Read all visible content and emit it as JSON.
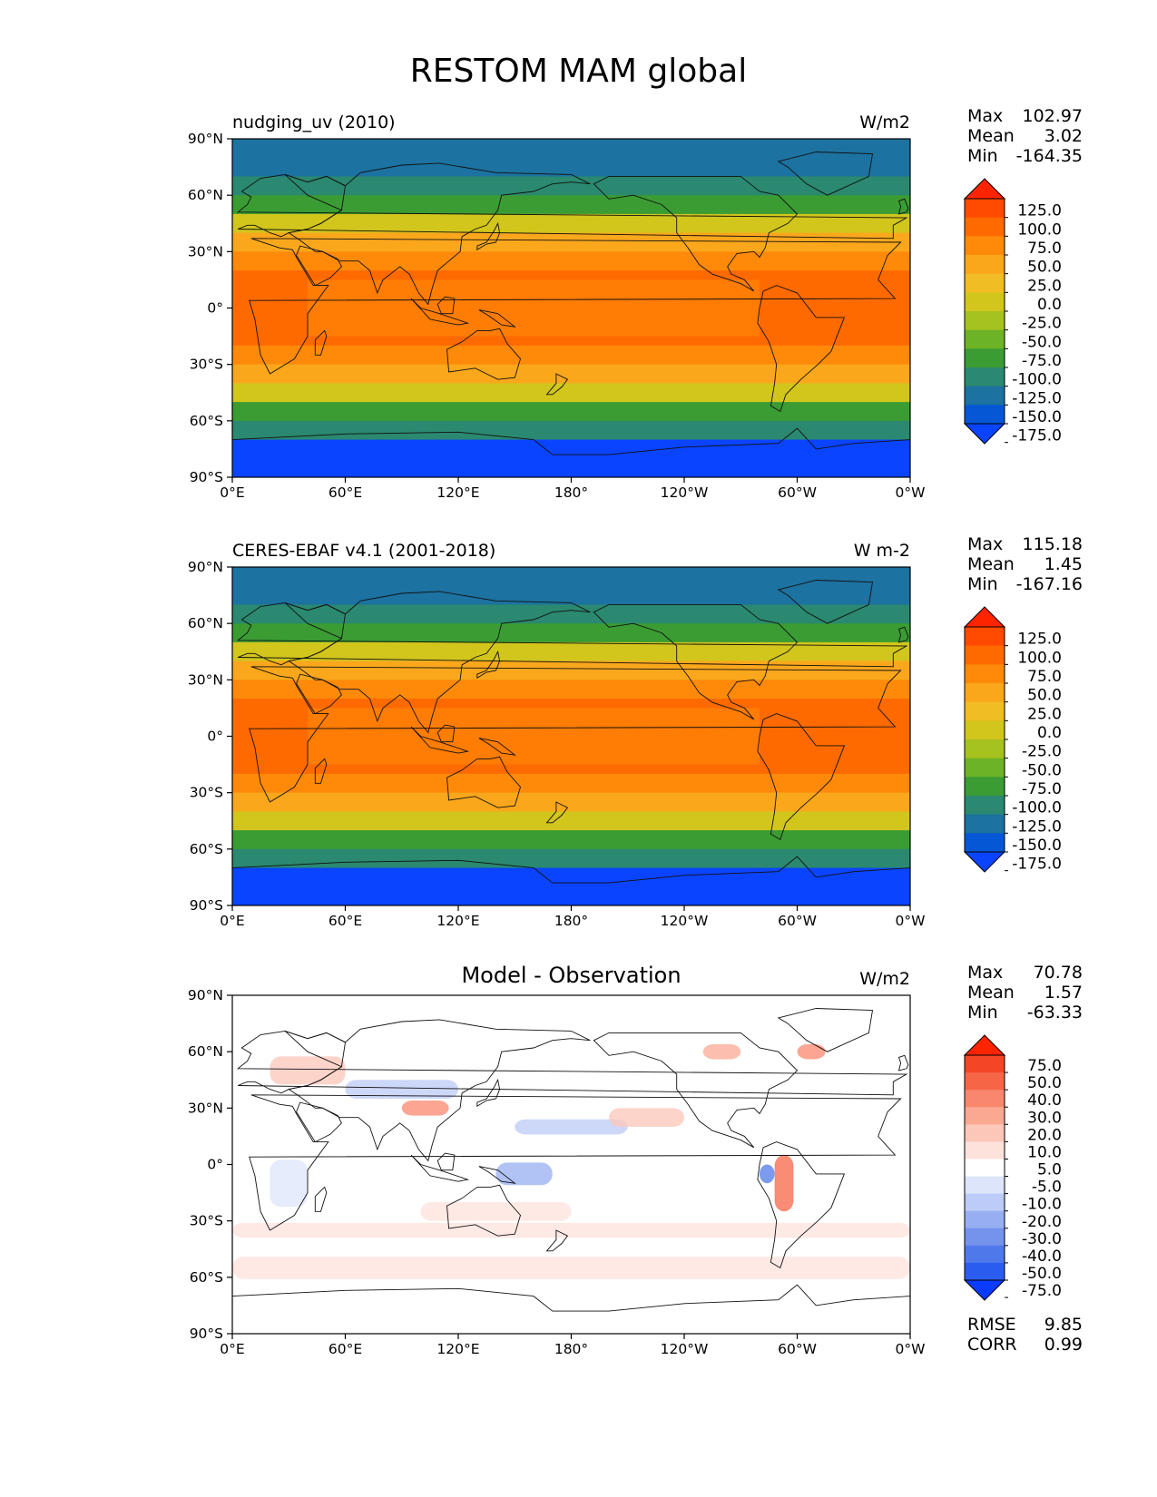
{
  "figure": {
    "title": "RESTOM MAM global"
  },
  "axes": {
    "lon_ticks": [
      "0°E",
      "60°E",
      "120°E",
      "180°",
      "120°W",
      "60°W",
      "0°W"
    ],
    "lat_ticks": [
      "90°N",
      "60°N",
      "30°N",
      "0°",
      "30°S",
      "60°S",
      "90°S"
    ]
  },
  "panels": [
    {
      "left_title": "nudging_uv (2010)",
      "center_title": "",
      "units": "W/m2",
      "stats": {
        "max_label": "Max",
        "max": "102.97",
        "mean_label": "Mean",
        "mean": "3.02",
        "min_label": "Min",
        "min": "-164.35"
      },
      "colorbar": {
        "ticks": [
          "125.0",
          "100.0",
          "75.0",
          "50.0",
          "25.0",
          "0.0",
          "-25.0",
          "-50.0",
          "-75.0",
          "-100.0",
          "-125.0",
          "-150.0",
          "-175.0"
        ],
        "colors": [
          "#0a44ff",
          "#0557d6",
          "#1c72a0",
          "#2a8970",
          "#3a9c33",
          "#6cb325",
          "#a6c21f",
          "#d2c51c",
          "#f0be24",
          "#faa71c",
          "#ff8a0a",
          "#ff6a00",
          "#ff4a00",
          "#ff2400"
        ]
      }
    },
    {
      "left_title": "CERES-EBAF v4.1 (2001-2018)",
      "center_title": "",
      "units": "W m-2",
      "stats": {
        "max_label": "Max",
        "max": "115.18",
        "mean_label": "Mean",
        "mean": "1.45",
        "min_label": "Min",
        "min": "-167.16"
      },
      "colorbar": {
        "ticks": [
          "125.0",
          "100.0",
          "75.0",
          "50.0",
          "25.0",
          "0.0",
          "-25.0",
          "-50.0",
          "-75.0",
          "-100.0",
          "-125.0",
          "-150.0",
          "-175.0"
        ],
        "colors": [
          "#0a44ff",
          "#0557d6",
          "#1c72a0",
          "#2a8970",
          "#3a9c33",
          "#6cb325",
          "#a6c21f",
          "#d2c51c",
          "#f0be24",
          "#faa71c",
          "#ff8a0a",
          "#ff6a00",
          "#ff4a00",
          "#ff2400"
        ]
      }
    },
    {
      "left_title": "",
      "center_title": "Model - Observation",
      "units": "W/m2",
      "stats": {
        "max_label": "Max",
        "max": "70.78",
        "mean_label": "Mean",
        "mean": "1.57",
        "min_label": "Min",
        "min": "-63.33"
      },
      "extra_stats": [
        {
          "label": "RMSE",
          "value": "9.85"
        },
        {
          "label": "CORR",
          "value": "0.99"
        }
      ],
      "colorbar": {
        "ticks": [
          "75.0",
          "50.0",
          "40.0",
          "30.0",
          "20.0",
          "10.0",
          "5.0",
          "-5.0",
          "-10.0",
          "-20.0",
          "-30.0",
          "-40.0",
          "-50.0",
          "-75.0"
        ],
        "colors": [
          "#0a3cff",
          "#2b5cf0",
          "#4f79ea",
          "#7393ec",
          "#97aef2",
          "#bccbf7",
          "#dde5fb",
          "#ffffff",
          "#fde2dc",
          "#fcc6b8",
          "#fba893",
          "#f9876d",
          "#f66546",
          "#f44526",
          "#ff2400"
        ]
      }
    }
  ]
}
